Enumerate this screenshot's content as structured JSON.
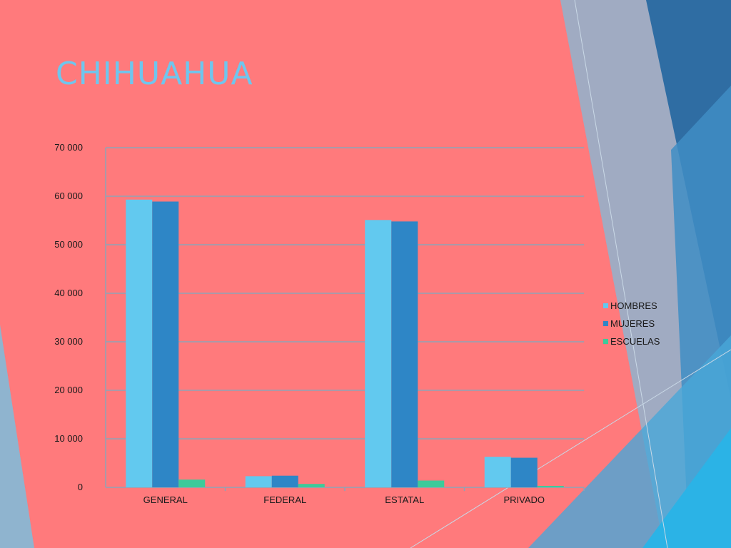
{
  "slide": {
    "title": "CHIHUAHUA"
  },
  "colors": {
    "background": "#ff7a7c",
    "title": "#6ec6ee",
    "hombres": "#62c9ef",
    "mujeres": "#2e86c6",
    "escuelas": "#3ccb9a",
    "gridline": "#8fa3b6"
  },
  "chart_data": {
    "type": "bar",
    "title": "",
    "xlabel": "",
    "ylabel": "",
    "categories": [
      "GENERAL",
      "FEDERAL",
      "ESTATAL",
      "PRIVADO"
    ],
    "series": [
      {
        "name": "HOMBRES",
        "values": [
          59300,
          2300,
          55100,
          6300
        ]
      },
      {
        "name": "MUJERES",
        "values": [
          58900,
          2400,
          54800,
          6100
        ]
      },
      {
        "name": "ESCUELAS",
        "values": [
          1600,
          700,
          1400,
          300
        ]
      }
    ],
    "ylim": [
      0,
      70000
    ],
    "yticks": [
      0,
      10000,
      20000,
      30000,
      40000,
      50000,
      60000,
      70000
    ],
    "ytick_labels": [
      "0",
      "10 000",
      "20 000",
      "30 000",
      "40 000",
      "50 000",
      "60 000",
      "70 000"
    ],
    "grid": true,
    "legend_position": "right"
  }
}
